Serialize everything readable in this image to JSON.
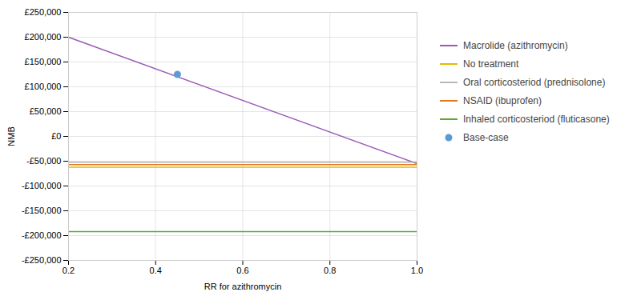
{
  "chart_data": {
    "type": "line",
    "xlabel": "RR for azithromycin",
    "ylabel": "NMB",
    "xlim": [
      0.2,
      1.0
    ],
    "ylim": [
      -250000,
      250000
    ],
    "xticks": [
      0.2,
      0.4,
      0.6,
      0.8,
      {
        "value": 1.0,
        "label": "1.0"
      }
    ],
    "yticks": [
      {
        "value": -250000,
        "label": "-£250,000"
      },
      {
        "value": -200000,
        "label": "-£200,000"
      },
      {
        "value": -150000,
        "label": "-£150,000"
      },
      {
        "value": -100000,
        "label": "-£100,000"
      },
      {
        "value": -50000,
        "label": "-£50,000"
      },
      {
        "value": 0,
        "label": "£0"
      },
      {
        "value": 50000,
        "label": "£50,000"
      },
      {
        "value": 100000,
        "label": "£100,000"
      },
      {
        "value": 150000,
        "label": "£150,000"
      },
      {
        "value": 200000,
        "label": "£200,000"
      },
      {
        "value": 250000,
        "label": "£250,000"
      }
    ],
    "grid": true,
    "legend": "right",
    "series": [
      {
        "name": "Macrolide (azithromycin)",
        "color": "#9B59B6",
        "x": [
          0.2,
          1.0
        ],
        "values": [
          200000,
          -55000
        ]
      },
      {
        "name": "No treatment",
        "color": "#E8B800",
        "x": [
          0.2,
          1.0
        ],
        "values": [
          -62000,
          -62000
        ]
      },
      {
        "name": "Oral corticosteriod (prednisolone)",
        "color": "#B8B8B8",
        "x": [
          0.2,
          1.0
        ],
        "values": [
          -52000,
          -52000
        ]
      },
      {
        "name": "NSAID (ibuprofen)",
        "color": "#E07820",
        "x": [
          0.2,
          1.0
        ],
        "values": [
          -57000,
          -57000
        ]
      },
      {
        "name": "Inhaled corticosteriod (fluticasone)",
        "color": "#5AAA30",
        "x": [
          0.2,
          1.0
        ],
        "values": [
          -192000,
          -192000
        ]
      },
      {
        "name": "Base-case",
        "color": "#5B9BD5",
        "type": "scatter",
        "marker": "circle",
        "x": [
          0.45
        ],
        "values": [
          125000
        ]
      }
    ]
  }
}
